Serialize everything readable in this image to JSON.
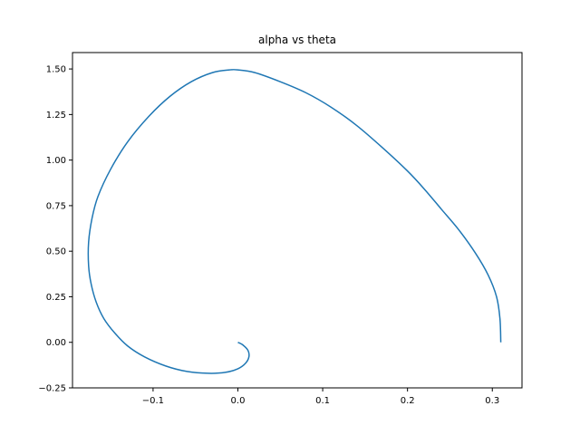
{
  "chart_data": {
    "type": "line",
    "title": "alpha vs theta",
    "xlabel": "",
    "ylabel": "",
    "xlim": [
      -0.195,
      0.335
    ],
    "ylim": [
      -0.25,
      1.59
    ],
    "grid": false,
    "legend": "none",
    "x_ticks": [
      {
        "value": -0.1,
        "label": "−0.1"
      },
      {
        "value": 0.0,
        "label": "0.0"
      },
      {
        "value": 0.1,
        "label": "0.1"
      },
      {
        "value": 0.2,
        "label": "0.2"
      },
      {
        "value": 0.3,
        "label": "0.3"
      }
    ],
    "y_ticks": [
      {
        "value": -0.25,
        "label": "−0.25"
      },
      {
        "value": 0.0,
        "label": "0.00"
      },
      {
        "value": 0.25,
        "label": "0.25"
      },
      {
        "value": 0.5,
        "label": "0.50"
      },
      {
        "value": 0.75,
        "label": "0.75"
      },
      {
        "value": 1.0,
        "label": "1.00"
      },
      {
        "value": 1.25,
        "label": "1.25"
      },
      {
        "value": 1.5,
        "label": "1.50"
      }
    ],
    "series": [
      {
        "color": "#1f77b4",
        "x": [
          0.31,
          0.309,
          0.305,
          0.295,
          0.28,
          0.26,
          0.24,
          0.22,
          0.2,
          0.17,
          0.14,
          0.11,
          0.08,
          0.05,
          0.02,
          0.0,
          -0.01,
          -0.03,
          -0.055,
          -0.08,
          -0.105,
          -0.13,
          -0.15,
          -0.165,
          -0.172,
          -0.176,
          -0.176,
          -0.173,
          -0.167,
          -0.158,
          -0.145,
          -0.13,
          -0.11,
          -0.085,
          -0.06,
          -0.035,
          -0.015,
          0.0,
          0.009,
          0.013,
          0.012,
          0.006,
          0.0
        ],
        "y": [
          0.0,
          0.13,
          0.25,
          0.37,
          0.49,
          0.62,
          0.73,
          0.84,
          0.94,
          1.07,
          1.19,
          1.29,
          1.37,
          1.43,
          1.48,
          1.495,
          1.495,
          1.48,
          1.43,
          1.35,
          1.24,
          1.1,
          0.95,
          0.8,
          0.68,
          0.55,
          0.42,
          0.32,
          0.22,
          0.13,
          0.05,
          -0.02,
          -0.08,
          -0.13,
          -0.16,
          -0.17,
          -0.165,
          -0.145,
          -0.115,
          -0.08,
          -0.045,
          -0.015,
          0.0
        ]
      }
    ]
  }
}
